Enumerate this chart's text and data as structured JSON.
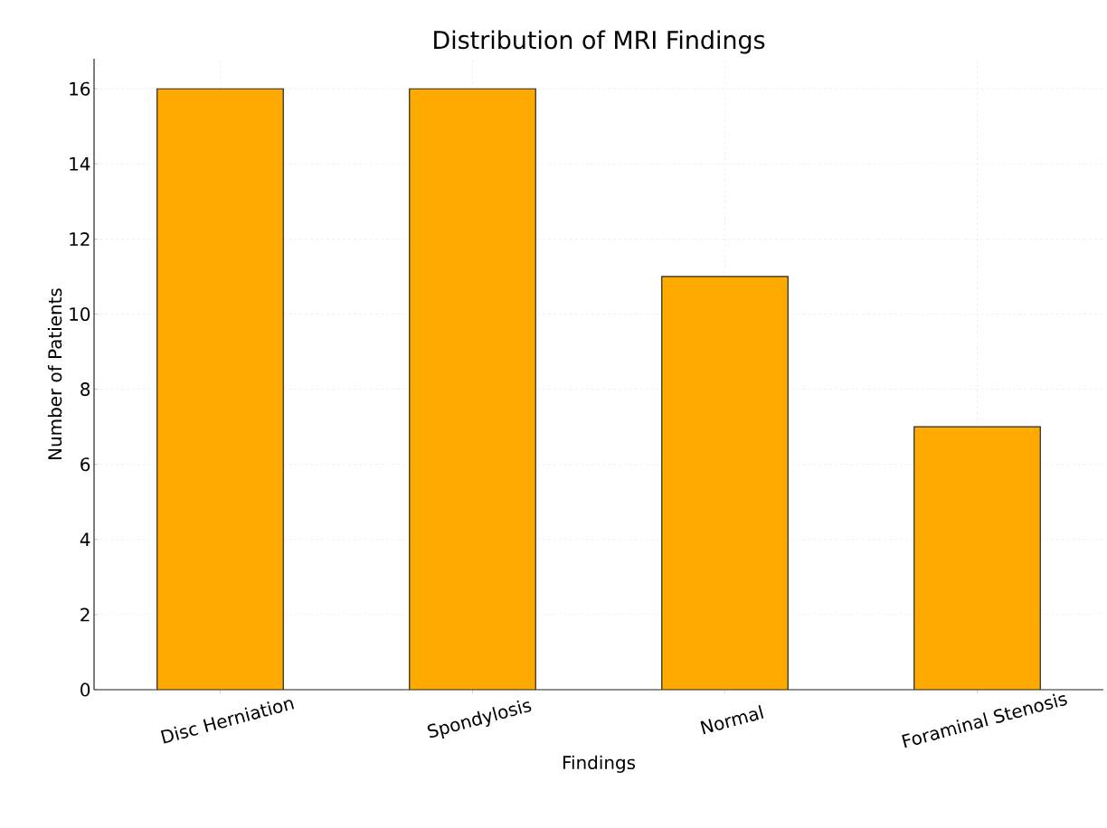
{
  "chart_data": {
    "type": "bar",
    "title": "Distribution of MRI Findings",
    "xlabel": "Findings",
    "ylabel": "Number of Patients",
    "categories": [
      "Disc Herniation",
      "Spondylosis",
      "Normal",
      "Foraminal Stenosis"
    ],
    "values": [
      16,
      16,
      11,
      7
    ],
    "color": "#ffaa00",
    "ylim": [
      0,
      16.8
    ],
    "yticks": [
      0,
      2,
      4,
      6,
      8,
      10,
      12,
      14,
      16
    ],
    "grid": true
  }
}
